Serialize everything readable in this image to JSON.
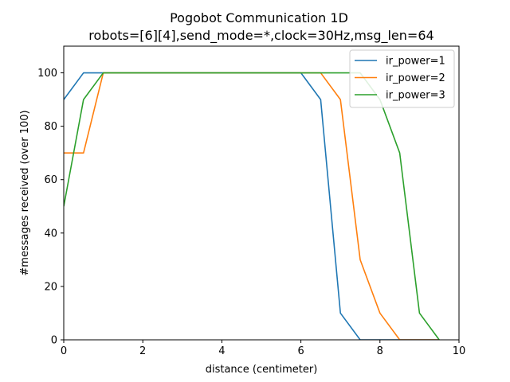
{
  "chart_data": {
    "type": "line",
    "title": "Pogobot Communication 1D",
    "subtitle": "robots=[6][4],send_mode=*,clock=30Hz,msg_len=64",
    "xlabel": "distance (centimeter)",
    "ylabel": "#messages received (over 100)",
    "xlim": [
      0,
      10
    ],
    "ylim": [
      0,
      110
    ],
    "xticks": [
      0,
      2,
      4,
      6,
      8,
      10
    ],
    "yticks": [
      0,
      20,
      40,
      60,
      80,
      100
    ],
    "grid": false,
    "legend_position": "top-right",
    "series": [
      {
        "name": "ir_power=1",
        "color": "#1f77b4",
        "x": [
          0,
          0.5,
          1,
          1.5,
          2,
          2.5,
          3,
          3.5,
          4,
          4.5,
          5,
          5.5,
          6,
          6.5,
          7,
          7.5,
          8,
          8.5,
          9,
          9.5
        ],
        "y": [
          90,
          100,
          100,
          100,
          100,
          100,
          100,
          100,
          100,
          100,
          100,
          100,
          100,
          90,
          10,
          0,
          0,
          0,
          0,
          0
        ]
      },
      {
        "name": "ir_power=2",
        "color": "#ff7f0e",
        "x": [
          0,
          0.5,
          1,
          1.5,
          2,
          2.5,
          3,
          3.5,
          4,
          4.5,
          5,
          5.5,
          6,
          6.5,
          7,
          7.5,
          8,
          8.5,
          9,
          9.5
        ],
        "y": [
          70,
          70,
          100,
          100,
          100,
          100,
          100,
          100,
          100,
          100,
          100,
          100,
          100,
          100,
          90,
          30,
          10,
          0,
          0,
          0
        ]
      },
      {
        "name": "ir_power=3",
        "color": "#2ca02c",
        "x": [
          0,
          0.5,
          1,
          1.5,
          2,
          2.5,
          3,
          3.5,
          4,
          4.5,
          5,
          5.5,
          6,
          6.5,
          7,
          7.5,
          8,
          8.5,
          9,
          9.5
        ],
        "y": [
          50,
          90,
          100,
          100,
          100,
          100,
          100,
          100,
          100,
          100,
          100,
          100,
          100,
          100,
          100,
          100,
          90,
          70,
          10,
          0
        ]
      }
    ]
  }
}
